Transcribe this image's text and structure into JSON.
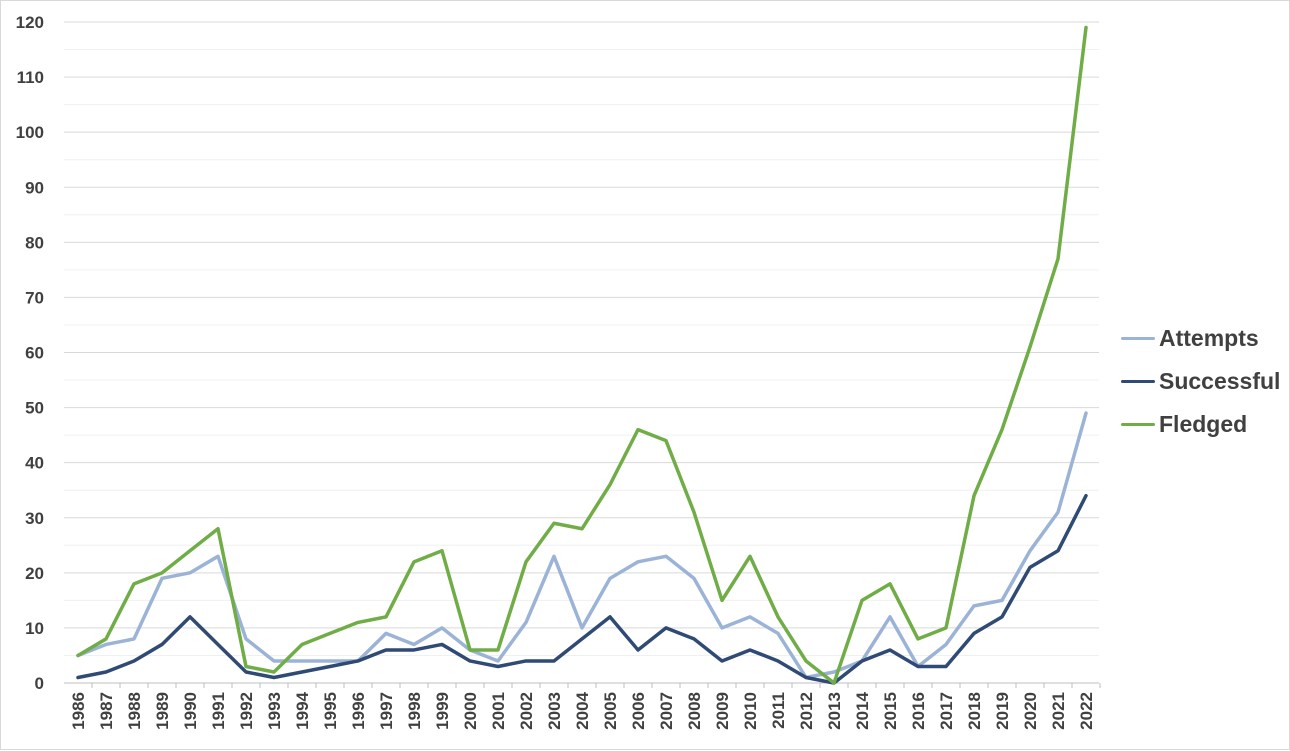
{
  "chart_data": {
    "type": "line",
    "title": "",
    "xlabel": "",
    "ylabel": "",
    "ylim": [
      0,
      120
    ],
    "yticks": [
      "0",
      "10",
      "20",
      "30",
      "40",
      "50",
      "60",
      "70",
      "80",
      "90",
      "100",
      "110",
      "120"
    ],
    "grid": "horizontal-major-and-minor",
    "legend_position": "right",
    "categories": [
      "1986",
      "1987",
      "1988",
      "1989",
      "1990",
      "1991",
      "1992",
      "1993",
      "1994",
      "1995",
      "1996",
      "1997",
      "1998",
      "1999",
      "2000",
      "2001",
      "2002",
      "2003",
      "2004",
      "2005",
      "2006",
      "2007",
      "2008",
      "2009",
      "2010",
      "2011",
      "2012",
      "2013",
      "2014",
      "2015",
      "2016",
      "2017",
      "2018",
      "2019",
      "2020",
      "2021",
      "2022"
    ],
    "series": [
      {
        "name": "Attempts",
        "color": "#9bb3d6",
        "values": [
          5,
          7,
          8,
          19,
          20,
          23,
          8,
          4,
          4,
          4,
          4,
          9,
          7,
          10,
          6,
          4,
          11,
          23,
          10,
          19,
          22,
          23,
          19,
          10,
          12,
          9,
          1,
          2,
          4,
          12,
          3,
          7,
          14,
          15,
          24,
          31,
          49
        ]
      },
      {
        "name": "Successful",
        "color": "#2e4a75",
        "values": [
          1,
          2,
          4,
          7,
          12,
          7,
          2,
          1,
          2,
          3,
          4,
          6,
          6,
          7,
          4,
          3,
          4,
          4,
          8,
          12,
          6,
          10,
          8,
          4,
          6,
          4,
          1,
          0,
          4,
          6,
          3,
          3,
          9,
          12,
          21,
          24,
          34
        ]
      },
      {
        "name": "Fledged",
        "color": "#70ad47",
        "values": [
          5,
          8,
          18,
          20,
          24,
          28,
          3,
          2,
          7,
          9,
          11,
          12,
          22,
          24,
          6,
          6,
          22,
          29,
          28,
          36,
          46,
          44,
          31,
          15,
          23,
          12,
          4,
          0,
          15,
          18,
          8,
          10,
          34,
          46,
          61,
          77,
          119
        ]
      }
    ]
  }
}
